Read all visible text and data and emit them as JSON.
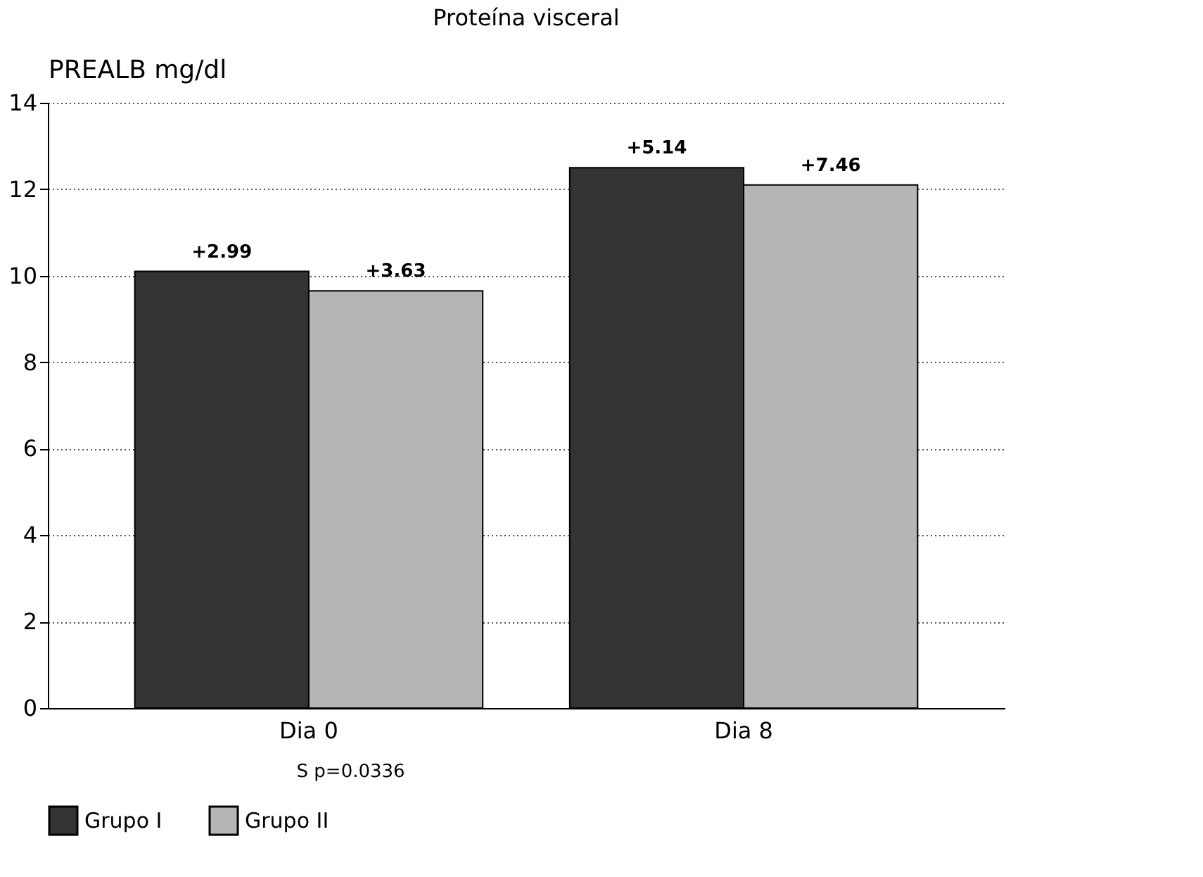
{
  "chart_data": {
    "type": "bar",
    "title": "Proteína visceral",
    "ylabel": "PREALB mg/dl",
    "categories": [
      "Dia 0",
      "Dia 8"
    ],
    "series": [
      {
        "name": "Grupo I",
        "color": "#333333",
        "values": [
          10.1,
          12.5
        ]
      },
      {
        "name": "Grupo II",
        "color": "#b5b5b5",
        "values": [
          9.65,
          12.1
        ]
      }
    ],
    "ylim": [
      0,
      14
    ],
    "yticks": [
      0,
      2,
      4,
      6,
      8,
      10,
      12,
      14
    ],
    "grid": "y",
    "legend": "bottom",
    "annotations": [
      "+2.99",
      "+3.63",
      "+5.14",
      "+7.46",
      "S p=0.0336"
    ]
  }
}
